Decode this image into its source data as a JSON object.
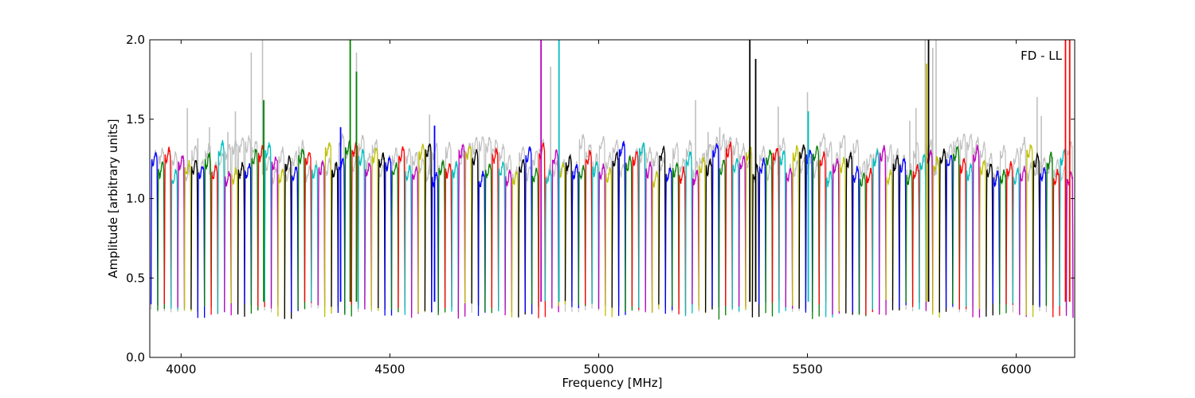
{
  "chart_data": {
    "type": "line",
    "title": "",
    "annotation": "FD - LL",
    "xlabel": "Frequency [MHz]",
    "ylabel": "Amplitude [arbitrary units]",
    "xlim": [
      3925,
      6140
    ],
    "ylim": [
      0.0,
      2.0
    ],
    "x_ticks": [
      4000,
      4500,
      5000,
      5500,
      6000
    ],
    "x_tick_labels": [
      "4000",
      "4500",
      "5000",
      "5500",
      "6000"
    ],
    "y_ticks": [
      0.0,
      0.5,
      1.0,
      1.5,
      2.0
    ],
    "y_tick_labels": [
      "0.0",
      "0.5",
      "1.0",
      "1.5",
      "2.0"
    ],
    "grid": false,
    "background_color": "#c0c0c0",
    "series_colors": [
      "#0000ff",
      "#008000",
      "#ff0000",
      "#00bfbf",
      "#bf00bf",
      "#bfbf00",
      "#000000"
    ],
    "channel_width_mhz": 16,
    "channel_start_mhz": 3928,
    "channel_count": 138,
    "channel_peak_amplitude": 1.25,
    "channel_edge_amplitude": 0.3,
    "spikes": [
      {
        "x": 4405,
        "y": 2.0,
        "color": "#008000"
      },
      {
        "x": 4420,
        "y": 1.8,
        "color": "#008000"
      },
      {
        "x": 4862,
        "y": 2.0,
        "color": "#bf00bf"
      },
      {
        "x": 4905,
        "y": 2.0,
        "color": "#00bfbf"
      },
      {
        "x": 5362,
        "y": 2.0,
        "color": "#000000"
      },
      {
        "x": 5376,
        "y": 1.88,
        "color": "#000000"
      },
      {
        "x": 5502,
        "y": 1.55,
        "color": "#00bfbf"
      },
      {
        "x": 5790,
        "y": 2.0,
        "color": "#000000"
      },
      {
        "x": 5785,
        "y": 1.85,
        "color": "#bfbf00"
      },
      {
        "x": 6118,
        "y": 2.0,
        "color": "#ff0000"
      },
      {
        "x": 6128,
        "y": 2.0,
        "color": "#ff0000"
      },
      {
        "x": 4198,
        "y": 1.62,
        "color": "#008000"
      },
      {
        "x": 4607,
        "y": 1.46,
        "color": "#0000ff"
      },
      {
        "x": 4382,
        "y": 1.45,
        "color": "#0000ff"
      }
    ],
    "background_spikes": [
      {
        "x": 4015,
        "y": 1.57
      },
      {
        "x": 4040,
        "y": 1.38
      },
      {
        "x": 4068,
        "y": 1.45
      },
      {
        "x": 4112,
        "y": 1.42
      },
      {
        "x": 4130,
        "y": 1.55
      },
      {
        "x": 4168,
        "y": 1.92
      },
      {
        "x": 4195,
        "y": 2.0
      },
      {
        "x": 4420,
        "y": 1.92
      },
      {
        "x": 4595,
        "y": 1.53
      },
      {
        "x": 4885,
        "y": 1.83
      },
      {
        "x": 5232,
        "y": 1.62
      },
      {
        "x": 5262,
        "y": 1.42
      },
      {
        "x": 5290,
        "y": 1.45
      },
      {
        "x": 5430,
        "y": 1.58
      },
      {
        "x": 5500,
        "y": 1.67
      },
      {
        "x": 5745,
        "y": 1.49
      },
      {
        "x": 5760,
        "y": 1.57
      },
      {
        "x": 5782,
        "y": 2.0
      },
      {
        "x": 5800,
        "y": 1.95
      },
      {
        "x": 5808,
        "y": 2.0
      },
      {
        "x": 6050,
        "y": 1.64
      },
      {
        "x": 6060,
        "y": 1.52
      }
    ]
  }
}
